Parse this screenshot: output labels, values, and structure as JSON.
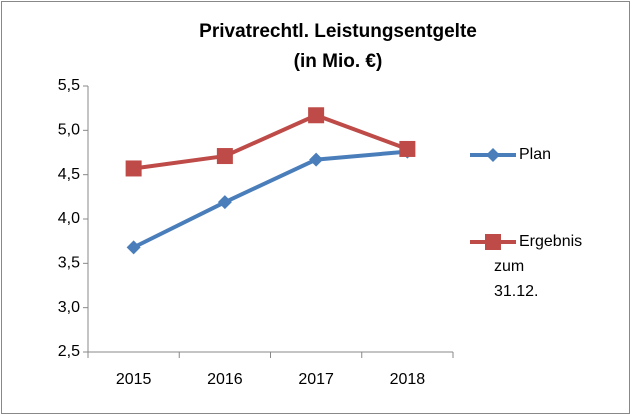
{
  "chart_data": {
    "type": "line",
    "title": [
      "Privatrechtl. Leistungsentgelte",
      "(in Mio. €)"
    ],
    "categories": [
      "2015",
      "2016",
      "2017",
      "2018"
    ],
    "series": [
      {
        "name": "Plan",
        "color": "#4a7ebb",
        "marker": "diamond",
        "values": [
          3.68,
          4.19,
          4.67,
          4.76
        ]
      },
      {
        "name": "Ergebnis zum 31.12.",
        "color": "#be4b48",
        "marker": "square",
        "values": [
          4.57,
          4.71,
          5.17,
          4.79
        ]
      }
    ],
    "ylim": [
      2.5,
      5.5
    ],
    "yticks": [
      {
        "value": 2.5,
        "label": "2,5"
      },
      {
        "value": 3.0,
        "label": "3,0"
      },
      {
        "value": 3.5,
        "label": "3,5"
      },
      {
        "value": 4.0,
        "label": "4,0"
      },
      {
        "value": 4.5,
        "label": "4,5"
      },
      {
        "value": 5.0,
        "label": "5,0"
      },
      {
        "value": 5.5,
        "label": "5,5"
      }
    ],
    "grid": false,
    "legend": "right"
  }
}
